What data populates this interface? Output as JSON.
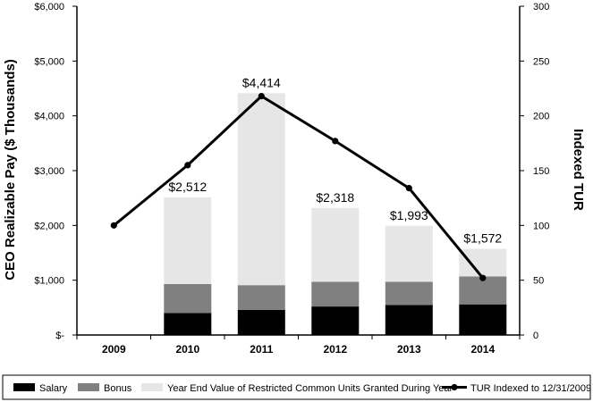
{
  "chart_data": {
    "type": "bar",
    "stacked": true,
    "categories": [
      "2009",
      "2010",
      "2011",
      "2012",
      "2013",
      "2014"
    ],
    "series": [
      {
        "name": "Salary",
        "values": [
          0,
          400,
          460,
          520,
          550,
          560
        ],
        "color": "#000000"
      },
      {
        "name": "Bonus",
        "values": [
          0,
          530,
          450,
          450,
          420,
          510
        ],
        "color": "#808080"
      },
      {
        "name": "Year End Value of Restricted Common Units Granted During Year",
        "values": [
          0,
          1582,
          3504,
          1348,
          1023,
          502
        ],
        "color": "#e6e6e6"
      }
    ],
    "totals": [
      "",
      "$2,512",
      "$4,414",
      "$2,318",
      "$1,993",
      "$1,572"
    ],
    "line_series": {
      "name": "TUR Indexed to 12/31/2009",
      "values": [
        100,
        155,
        218,
        177,
        134,
        52
      ],
      "color": "#000000",
      "axis": "right"
    },
    "ylabel": "CEO Realizable Pay ($ Thousands)",
    "y2label": "Indexed TUR",
    "ylim": [
      0,
      6000
    ],
    "y2lim": [
      0,
      300
    ],
    "yticks": [
      "$-",
      "$1,000",
      "$2,000",
      "$3,000",
      "$4,000",
      "$5,000",
      "$6,000"
    ],
    "y2ticks": [
      "0",
      "50",
      "100",
      "150",
      "200",
      "250",
      "300"
    ],
    "grid": false,
    "legend_position": "bottom"
  }
}
